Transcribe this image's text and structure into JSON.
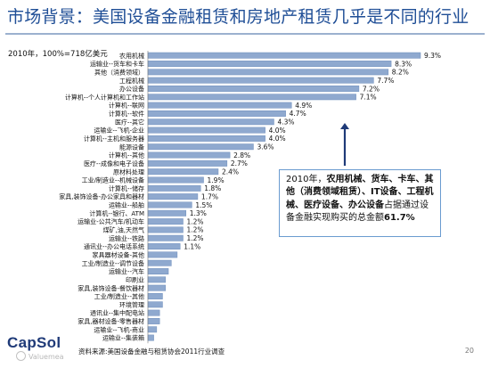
{
  "title": "市场背景：美国设备金融租赁和房地产租赁几乎是不同的行业",
  "subtitle": "2010年，100%=718亿美元",
  "callout": {
    "part1": "2010年，",
    "bold1": "农用机械、货车、卡车、其他（消费领域租赁）、IT设备、工程机械、医疗设备、办公设备",
    "part2": "占据通过设备金融实现购买的总金额",
    "bold2": "61.7%"
  },
  "source": "资料来源:美国设备金融与租赁协会2011行业调查",
  "logo": "CapSol",
  "watermark": "Valuemea",
  "page_number": "20",
  "colors": {
    "bar": "#8fa9cf",
    "bar_edge": "#6f8fbd",
    "title": "#1f4e96",
    "arrow": "#1f3a78"
  },
  "chart_data": {
    "type": "bar",
    "orientation": "horizontal",
    "categories": [
      "农用机械",
      "运输业--货车和卡车",
      "其他（消费领域）",
      "工程机械",
      "办公设备",
      "计算机--个人计算机和工作站",
      "计算机--联网",
      "计算机--软件",
      "医疗--其它",
      "运输业--飞机-企业",
      "计算机--主机和服务器",
      "能源设备",
      "计算机--其他",
      "医疗--成像和电子设备",
      "原材料处理",
      "工业/制造业--机械设备",
      "计算机--储存",
      "家具,装饰设备-办公家具和器材",
      "运输业--船舶",
      "计算机--银行、ATM",
      "运输业-公共汽车/机动车",
      "煤矿,油,天然气",
      "运输业--铁路",
      "通讯业--办公电话系统",
      "家具器材设备-其他",
      "工业/制造业--调节设备",
      "运输业--汽车",
      "印刷业",
      "家具,装饰设备-餐饮器材",
      "工业/制造业--其他",
      "环境管理",
      "通讯业--集中配电站",
      "家具,器材设备-零售器材",
      "运输业--飞机-商业",
      "运输业--集装箱"
    ],
    "values": [
      9.3,
      8.3,
      8.2,
      7.7,
      7.2,
      7.1,
      4.9,
      4.7,
      4.3,
      4.0,
      4.0,
      3.6,
      2.8,
      2.7,
      2.4,
      1.9,
      1.8,
      1.7,
      1.5,
      1.3,
      1.2,
      1.2,
      1.2,
      1.1,
      1.0,
      0.8,
      0.7,
      0.6,
      0.6,
      0.5,
      0.5,
      0.4,
      0.4,
      0.3,
      0.2
    ],
    "value_labels": [
      "9.3%",
      "8.3%",
      "8.2%",
      "7.7%",
      "7.2%",
      "7.1%",
      "4.9%",
      "4.7%",
      "4.3%",
      "4.0%",
      "4.0%",
      "3.6%",
      "2.8%",
      "2.7%",
      "2.4%",
      "1.9%",
      "1.8%",
      "1.7%",
      "1.5%",
      "1.3%",
      "1.2%",
      "1.2%",
      "1.2%",
      "1.1%",
      "",
      "",
      "",
      "",
      "",
      "",
      "",
      "",
      "",
      "",
      ""
    ],
    "unit": "%",
    "xlim": [
      0,
      9.3
    ],
    "grid": false,
    "legend": "none"
  }
}
